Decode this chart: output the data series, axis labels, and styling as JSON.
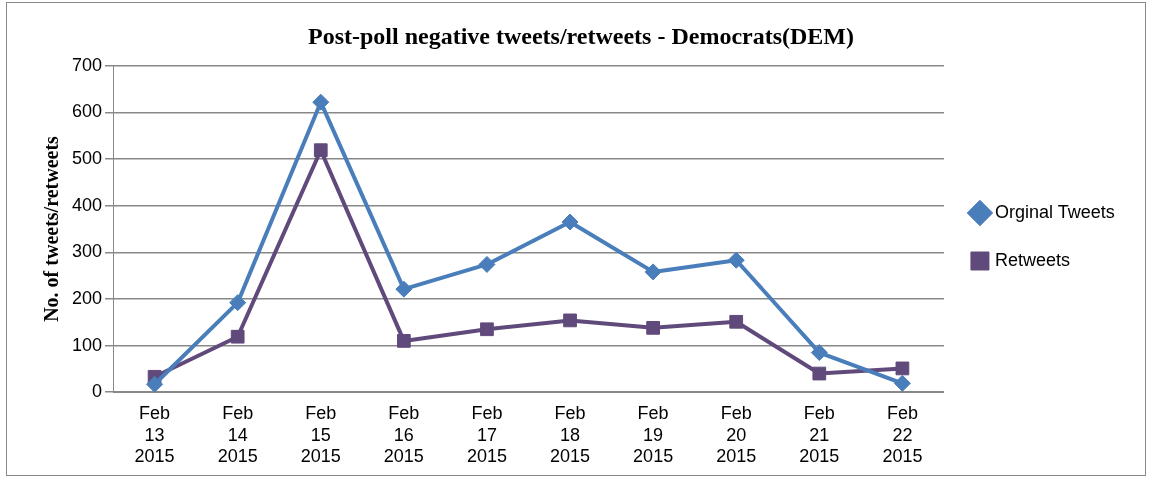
{
  "chart_data": {
    "type": "line",
    "title": "Post-poll negative tweets/retweets - Democrats(DEM)",
    "ylabel": "No. of tweets/retweets",
    "categories": [
      "Feb 13 2015",
      "Feb 14 2015",
      "Feb 15 2015",
      "Feb 16 2015",
      "Feb 17 2015",
      "Feb 18 2015",
      "Feb 19 2015",
      "Feb 20 2015",
      "Feb 21 2015",
      "Feb 22 2015"
    ],
    "series": [
      {
        "name": "Orginal Tweets",
        "color": "#4a7ebb",
        "marker": "diamond",
        "values": [
          17,
          192,
          622,
          221,
          274,
          365,
          258,
          283,
          85,
          19
        ]
      },
      {
        "name": "Retweets",
        "color": "#604a7b",
        "marker": "square",
        "values": [
          33,
          119,
          519,
          110,
          135,
          154,
          138,
          151,
          40,
          51
        ]
      }
    ],
    "ylim": [
      0,
      700
    ],
    "yticks": [
      0,
      100,
      200,
      300,
      400,
      500,
      600,
      700
    ],
    "grid": "y",
    "legend": "right",
    "line_style": "solid"
  }
}
